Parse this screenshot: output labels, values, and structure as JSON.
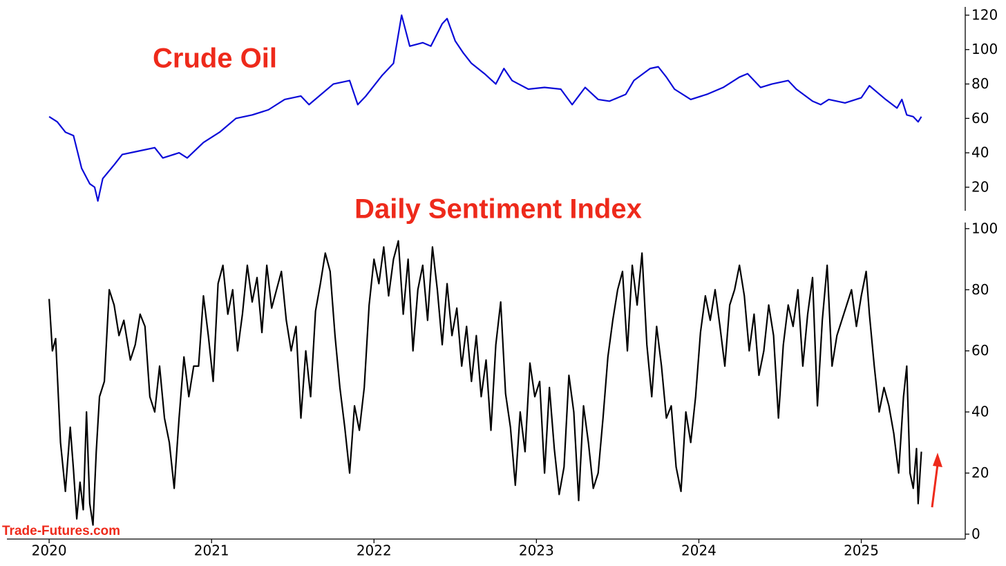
{
  "chart_data": [
    {
      "type": "line",
      "title": "Crude Oil",
      "color": "#0a0ad8",
      "xlim": [
        2019.74,
        2025.64
      ],
      "ylim": [
        6.3,
        124.8
      ],
      "yticks": [
        20,
        40,
        60,
        80,
        100,
        120
      ],
      "x": [
        2020.0,
        2020.05,
        2020.1,
        2020.15,
        2020.2,
        2020.25,
        2020.28,
        2020.3,
        2020.33,
        2020.4,
        2020.45,
        2020.55,
        2020.65,
        2020.7,
        2020.8,
        2020.85,
        2020.95,
        2021.05,
        2021.15,
        2021.25,
        2021.35,
        2021.45,
        2021.55,
        2021.6,
        2021.75,
        2021.85,
        2021.9,
        2021.95,
        2022.05,
        2022.12,
        2022.17,
        2022.22,
        2022.3,
        2022.35,
        2022.42,
        2022.45,
        2022.5,
        2022.55,
        2022.6,
        2022.68,
        2022.75,
        2022.8,
        2022.85,
        2022.95,
        2023.05,
        2023.15,
        2023.22,
        2023.3,
        2023.38,
        2023.45,
        2023.55,
        2023.6,
        2023.7,
        2023.75,
        2023.8,
        2023.85,
        2023.95,
        2024.05,
        2024.15,
        2024.25,
        2024.3,
        2024.38,
        2024.45,
        2024.55,
        2024.6,
        2024.7,
        2024.75,
        2024.8,
        2024.9,
        2025.0,
        2025.05,
        2025.15,
        2025.22,
        2025.25,
        2025.28,
        2025.32,
        2025.35,
        2025.37
      ],
      "values": [
        61,
        58,
        52,
        50,
        31,
        22,
        20,
        12,
        25,
        33,
        39,
        41,
        43,
        37,
        40,
        37,
        46,
        52,
        60,
        62,
        65,
        71,
        73,
        68,
        80,
        82,
        68,
        73,
        85,
        92,
        120,
        102,
        104,
        102,
        115,
        118,
        105,
        98,
        92,
        86,
        80,
        89,
        82,
        77,
        78,
        77,
        68,
        78,
        71,
        70,
        74,
        82,
        89,
        90,
        84,
        77,
        71,
        74,
        78,
        84,
        86,
        78,
        80,
        82,
        77,
        70,
        68,
        71,
        69,
        72,
        79,
        71,
        66,
        71,
        62,
        61,
        58,
        61
      ]
    },
    {
      "type": "line",
      "title": "Daily Sentiment Index",
      "color": "#000000",
      "watermark": "Trade-Futures.com",
      "xlim": [
        2019.74,
        2025.64
      ],
      "xticks": [
        2020,
        2021,
        2022,
        2023,
        2024,
        2025
      ],
      "ylim": [
        -1.6,
        102
      ],
      "yticks": [
        0,
        20,
        40,
        60,
        80,
        100
      ],
      "x": [
        2020.0,
        2020.02,
        2020.04,
        2020.07,
        2020.1,
        2020.13,
        2020.15,
        2020.17,
        2020.19,
        2020.21,
        2020.23,
        2020.25,
        2020.27,
        2020.29,
        2020.31,
        2020.34,
        2020.37,
        2020.4,
        2020.43,
        2020.46,
        2020.5,
        2020.53,
        2020.56,
        2020.59,
        2020.62,
        2020.65,
        2020.68,
        2020.71,
        2020.74,
        2020.77,
        2020.8,
        2020.83,
        2020.86,
        2020.89,
        2020.92,
        2020.95,
        2020.98,
        2021.01,
        2021.04,
        2021.07,
        2021.1,
        2021.13,
        2021.16,
        2021.19,
        2021.22,
        2021.25,
        2021.28,
        2021.31,
        2021.34,
        2021.37,
        2021.4,
        2021.43,
        2021.46,
        2021.49,
        2021.52,
        2021.55,
        2021.58,
        2021.61,
        2021.64,
        2021.67,
        2021.7,
        2021.73,
        2021.76,
        2021.79,
        2021.82,
        2021.85,
        2021.88,
        2021.91,
        2021.94,
        2021.97,
        2022.0,
        2022.03,
        2022.06,
        2022.09,
        2022.12,
        2022.15,
        2022.18,
        2022.21,
        2022.24,
        2022.27,
        2022.3,
        2022.33,
        2022.36,
        2022.39,
        2022.42,
        2022.45,
        2022.48,
        2022.51,
        2022.54,
        2022.57,
        2022.6,
        2022.63,
        2022.66,
        2022.69,
        2022.72,
        2022.75,
        2022.78,
        2022.81,
        2022.84,
        2022.87,
        2022.9,
        2022.93,
        2022.96,
        2022.99,
        2023.02,
        2023.05,
        2023.08,
        2023.11,
        2023.14,
        2023.17,
        2023.2,
        2023.23,
        2023.26,
        2023.29,
        2023.32,
        2023.35,
        2023.38,
        2023.41,
        2023.44,
        2023.47,
        2023.5,
        2023.53,
        2023.56,
        2023.59,
        2023.62,
        2023.65,
        2023.68,
        2023.71,
        2023.74,
        2023.77,
        2023.8,
        2023.83,
        2023.86,
        2023.89,
        2023.92,
        2023.95,
        2023.98,
        2024.01,
        2024.04,
        2024.07,
        2024.1,
        2024.13,
        2024.16,
        2024.19,
        2024.22,
        2024.25,
        2024.28,
        2024.31,
        2024.34,
        2024.37,
        2024.4,
        2024.43,
        2024.46,
        2024.49,
        2024.52,
        2024.55,
        2024.58,
        2024.61,
        2024.64,
        2024.67,
        2024.7,
        2024.73,
        2024.76,
        2024.79,
        2024.82,
        2024.85,
        2024.88,
        2024.91,
        2024.94,
        2024.97,
        2025.0,
        2025.03,
        2025.05,
        2025.08,
        2025.11,
        2025.14,
        2025.17,
        2025.2,
        2025.23,
        2025.26,
        2025.28,
        2025.3,
        2025.32,
        2025.34,
        2025.35,
        2025.37
      ],
      "values": [
        77,
        60,
        64,
        30,
        14,
        35,
        21,
        5,
        17,
        8,
        40,
        10,
        3,
        27,
        45,
        50,
        80,
        75,
        65,
        70,
        57,
        62,
        72,
        68,
        45,
        40,
        55,
        38,
        30,
        15,
        38,
        58,
        45,
        55,
        55,
        78,
        65,
        50,
        82,
        88,
        72,
        80,
        60,
        72,
        88,
        76,
        84,
        66,
        88,
        74,
        80,
        86,
        70,
        60,
        68,
        38,
        60,
        45,
        73,
        82,
        92,
        86,
        65,
        48,
        35,
        20,
        42,
        34,
        48,
        75,
        90,
        82,
        94,
        78,
        90,
        96,
        72,
        90,
        60,
        80,
        88,
        70,
        94,
        80,
        62,
        82,
        65,
        74,
        55,
        68,
        50,
        65,
        45,
        57,
        34,
        62,
        76,
        46,
        35,
        16,
        40,
        27,
        56,
        45,
        50,
        20,
        48,
        28,
        13,
        22,
        52,
        40,
        11,
        42,
        30,
        15,
        20,
        38,
        58,
        70,
        80,
        86,
        60,
        88,
        75,
        92,
        62,
        45,
        68,
        55,
        38,
        42,
        22,
        14,
        40,
        30,
        45,
        66,
        78,
        70,
        80,
        68,
        55,
        75,
        80,
        88,
        78,
        60,
        72,
        52,
        60,
        75,
        65,
        38,
        62,
        75,
        68,
        80,
        55,
        72,
        84,
        42,
        70,
        88,
        55,
        65,
        70,
        75,
        80,
        68,
        78,
        86,
        72,
        55,
        40,
        48,
        42,
        33,
        20,
        45,
        55,
        20,
        15,
        28,
        10,
        27
      ]
    }
  ]
}
